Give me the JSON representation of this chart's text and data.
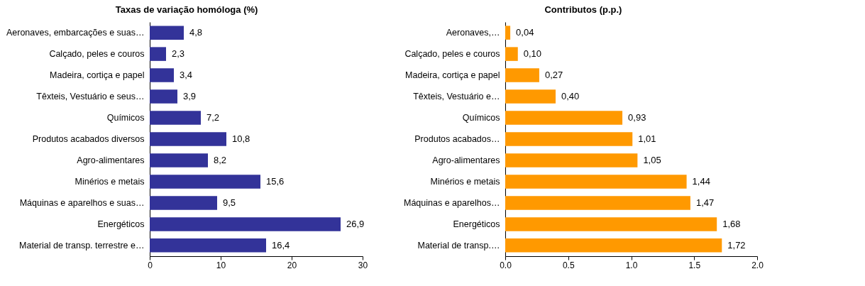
{
  "chart_data": [
    {
      "type": "bar",
      "orientation": "horizontal",
      "title": "Taxas de variação homóloga (%)",
      "categories": [
        "Aeronaves, embarcações e suas…",
        "Calçado, peles e couros",
        "Madeira, cortiça e papel",
        "Têxteis, Vestuário e seus…",
        "Químicos",
        "Produtos acabados diversos",
        "Agro-alimentares",
        "Minérios e metais",
        "Máquinas e aparelhos e suas…",
        "Energéticos",
        "Material de transp. terrestre e…"
      ],
      "values": [
        4.8,
        2.3,
        3.4,
        3.9,
        7.2,
        10.8,
        8.2,
        15.6,
        9.5,
        26.9,
        16.4
      ],
      "value_labels": [
        "4,8",
        "2,3",
        "3,4",
        "3,9",
        "7,2",
        "10,8",
        "8,2",
        "15,6",
        "9,5",
        "26,9",
        "16,4"
      ],
      "color": "#333399",
      "xlim": [
        0,
        30
      ],
      "xticks": [
        0,
        10,
        20,
        30
      ],
      "grid": false
    },
    {
      "type": "bar",
      "orientation": "horizontal",
      "title": "Contributos (p.p.)",
      "categories": [
        "Aeronaves,…",
        "Calçado, peles e couros",
        "Madeira, cortiça e papel",
        "Têxteis, Vestuário e…",
        "Químicos",
        "Produtos acabados…",
        "Agro-alimentares",
        "Minérios e metais",
        "Máquinas e aparelhos…",
        "Energéticos",
        "Material de transp.…"
      ],
      "values": [
        0.04,
        0.1,
        0.27,
        0.4,
        0.93,
        1.01,
        1.05,
        1.44,
        1.47,
        1.68,
        1.72
      ],
      "value_labels": [
        "0,04",
        "0,10",
        "0,27",
        "0,40",
        "0,93",
        "1,01",
        "1,05",
        "1,44",
        "1,47",
        "1,68",
        "1,72"
      ],
      "color": "#ff9900",
      "xlim": [
        0,
        2
      ],
      "xticks": [
        {
          "value": 0,
          "label": "0.0"
        },
        {
          "value": 0.5,
          "label": "0.5"
        },
        {
          "value": 1,
          "label": "1.0"
        },
        {
          "value": 1.5,
          "label": "1.5"
        },
        {
          "value": 2,
          "label": "2.0"
        }
      ],
      "grid": false
    }
  ]
}
